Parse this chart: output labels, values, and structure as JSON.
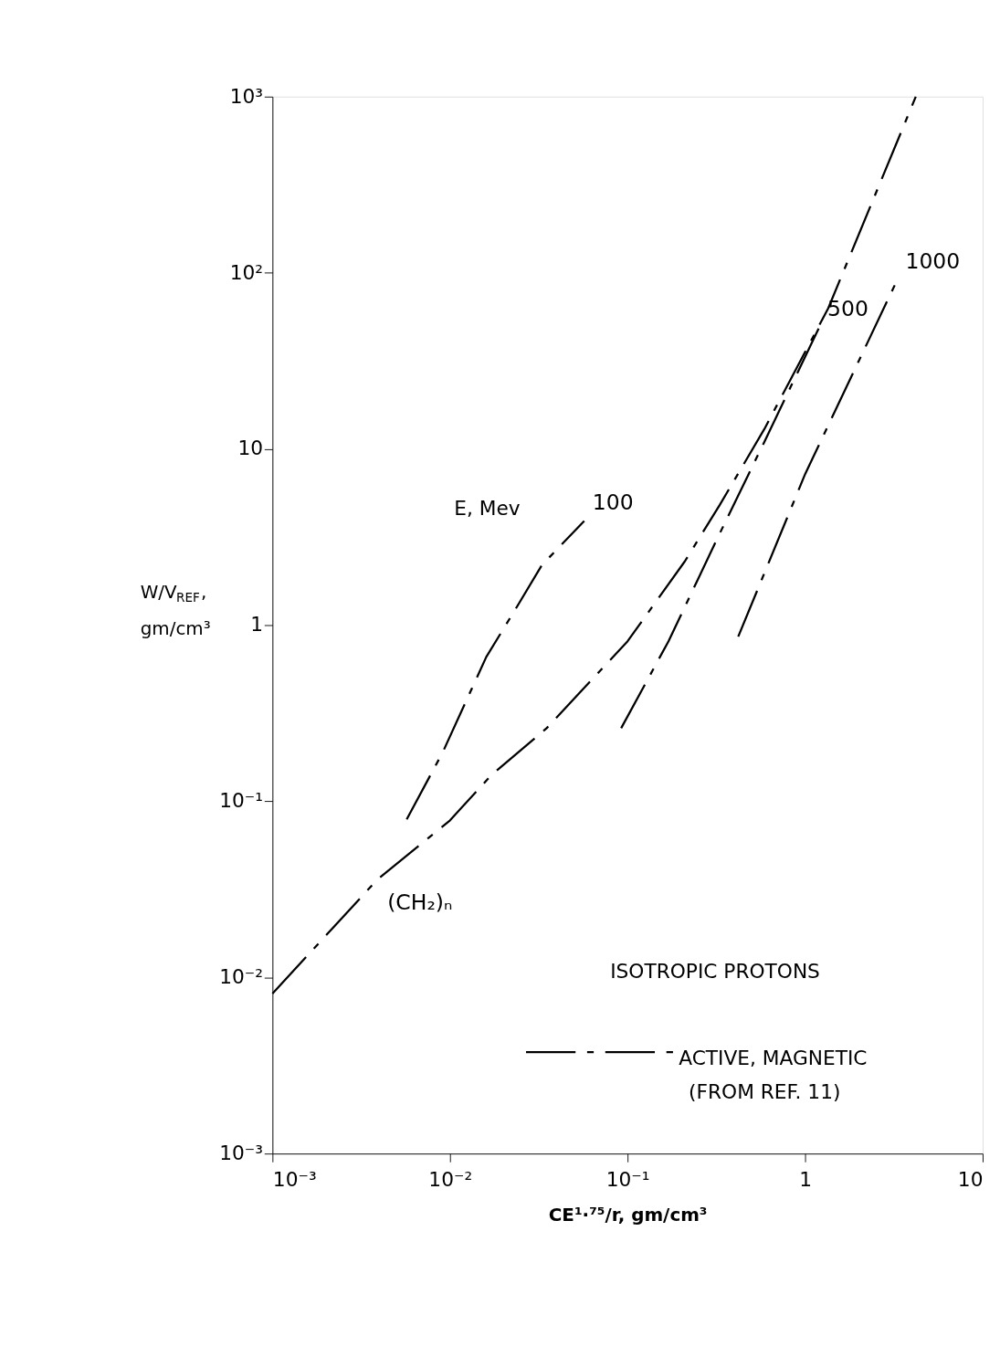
{
  "chart_data": {
    "type": "line",
    "xlabel": "CE¹·⁷⁵/r, gm/cm³",
    "ylabel": "W/V$_{REF}$, gm/cm³",
    "log": "xy",
    "grid": false,
    "line_style": "dashed",
    "marker": "none",
    "xlim": [
      0.001,
      10
    ],
    "ylim": [
      0.001,
      1000
    ],
    "xticks": [
      {
        "value": 0.001,
        "label": "10⁻³"
      },
      {
        "value": 0.01,
        "label": "10⁻²"
      },
      {
        "value": 0.1,
        "label": "10⁻¹"
      },
      1,
      10
    ],
    "yticks": [
      {
        "value": 0.001,
        "label": "10⁻³"
      },
      {
        "value": 0.01,
        "label": "10⁻²"
      },
      {
        "value": 0.1,
        "label": "10⁻¹"
      },
      1,
      10,
      {
        "value": 100,
        "label": "10²"
      },
      {
        "value": 1000,
        "label": "10³"
      }
    ],
    "series": [
      {
        "name": "(CH₂)ₙ",
        "color": "#000000",
        "x": [
          0.001,
          0.0039,
          0.01,
          0.017,
          0.035,
          0.1,
          0.21,
          0.33,
          0.59,
          1.35,
          4.2
        ],
        "values": [
          0.0081,
          0.036,
          0.078,
          0.14,
          0.26,
          0.81,
          2.3,
          4.8,
          13,
          63,
          1000
        ]
      },
      {
        "name": "100",
        "color": "#000000",
        "x": [
          0.0057,
          0.0091,
          0.016,
          0.023,
          0.033,
          0.057
        ],
        "values": [
          0.079,
          0.19,
          0.66,
          1.2,
          2.2,
          3.9
        ]
      },
      {
        "name": "500",
        "color": "#000000",
        "x": [
          0.092,
          0.17,
          0.32,
          0.59,
          1.2
        ],
        "values": [
          0.26,
          0.81,
          3.1,
          11,
          49
        ]
      },
      {
        "name": "1000",
        "color": "#000000",
        "x": [
          0.42,
          1,
          3.3
        ],
        "values": [
          0.86,
          7.2,
          91
        ]
      }
    ],
    "annotations": [
      "E, Mev",
      "ISOTROPIC  PROTONS",
      "ACTIVE, MAGNETIC",
      "(FROM REF. 11)"
    ]
  }
}
